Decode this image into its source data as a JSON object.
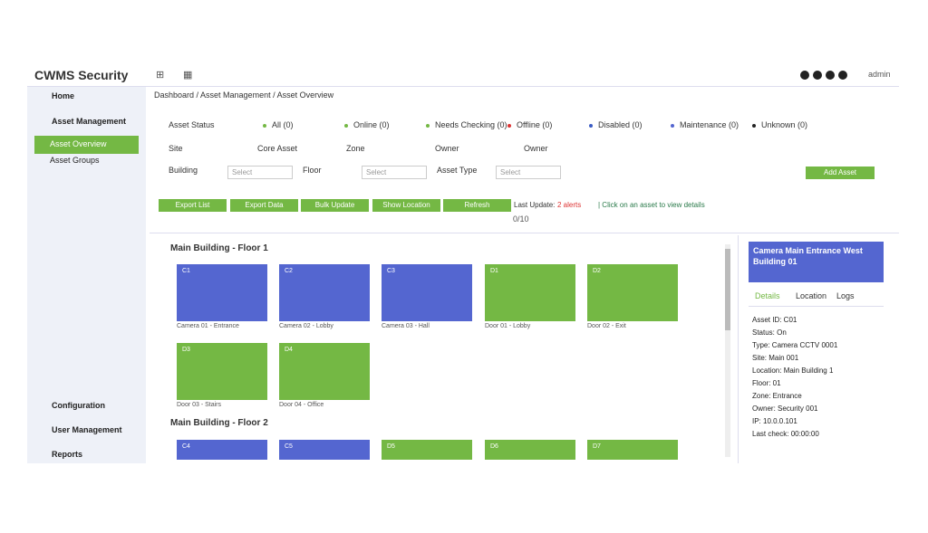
{
  "header": {
    "logo": "CWMS Security",
    "icons": [
      "⊞",
      "▦"
    ],
    "user": "admin"
  },
  "sidebar": {
    "items": [
      {
        "label": "Home",
        "y": 0
      },
      {
        "label": "Asset Management"
      },
      {
        "label": "Asset Overview"
      },
      {
        "label": "Asset Groups"
      },
      {
        "label": "Configuration"
      },
      {
        "label": "User Management"
      },
      {
        "label": "Reports"
      }
    ]
  },
  "breadcrumb": "Dashboard / Asset Management / Asset Overview",
  "filters": {
    "status_label": "Asset Status",
    "statuses": [
      "All (0)",
      "Online (0)",
      "Needs Checking (0)",
      "Offline (0)",
      "Disabled (0)",
      "Maintenance (0)",
      "Unknown (0)"
    ],
    "row2": [
      "Site",
      "Core Asset",
      "Zone",
      "Owner",
      "Owner"
    ],
    "row3": [
      {
        "label": "Building",
        "select": "Select"
      },
      {
        "label": "Floor",
        "select": "Select"
      },
      {
        "label": "Asset Type",
        "select": "Select"
      }
    ],
    "add_button": "Add Asset"
  },
  "actions": {
    "buttons": [
      "Export List",
      "Export Data",
      "Bulk Update",
      "Show Location",
      "Refresh"
    ],
    "note_prefix": "Last Update:",
    "note_alert": "2 alerts",
    "note_suffix": "| Click on an asset to view details",
    "counter": "0/10"
  },
  "sections": [
    {
      "title": "Main Building - Floor 1",
      "cards": [
        {
          "label": "C1",
          "caption": "Camera 01 - Entrance",
          "color": "#5466d0"
        },
        {
          "label": "C2",
          "caption": "Camera 02 - Lobby",
          "color": "#5466d0"
        },
        {
          "label": "C3",
          "caption": "Camera 03 - Hall",
          "color": "#5466d0"
        },
        {
          "label": "D1",
          "caption": "Door 01 - Lobby",
          "color": "#74b844"
        },
        {
          "label": "D2",
          "caption": "Door 02 - Exit",
          "color": "#74b844"
        },
        {
          "label": "D3",
          "caption": "Door 03 - Stairs",
          "color": "#74b844"
        },
        {
          "label": "D4",
          "caption": "Door 04 - Office",
          "color": "#74b844"
        }
      ]
    },
    {
      "title": "Main Building - Floor 2",
      "cards": [
        {
          "label": "C4",
          "caption": "",
          "color": "#5466d0"
        },
        {
          "label": "C5",
          "caption": "",
          "color": "#5466d0"
        },
        {
          "label": "D5",
          "caption": "",
          "color": "#74b844"
        },
        {
          "label": "D6",
          "caption": "",
          "color": "#74b844"
        },
        {
          "label": "D7",
          "caption": "",
          "color": "#74b844"
        }
      ]
    }
  ],
  "detail": {
    "title": "Camera Main Entrance West Building 01",
    "tabs": [
      "Details",
      "Location",
      "Logs"
    ],
    "lines": [
      "Asset ID: C01",
      "Status: On",
      "Type: Camera CCTV 0001",
      "Site: Main 001",
      "Location: Main Building 1",
      "Floor: 01",
      "Zone: Entrance",
      "Owner: Security 001",
      "IP: 10.0.0.101",
      "Last check: 00:00:00"
    ]
  }
}
